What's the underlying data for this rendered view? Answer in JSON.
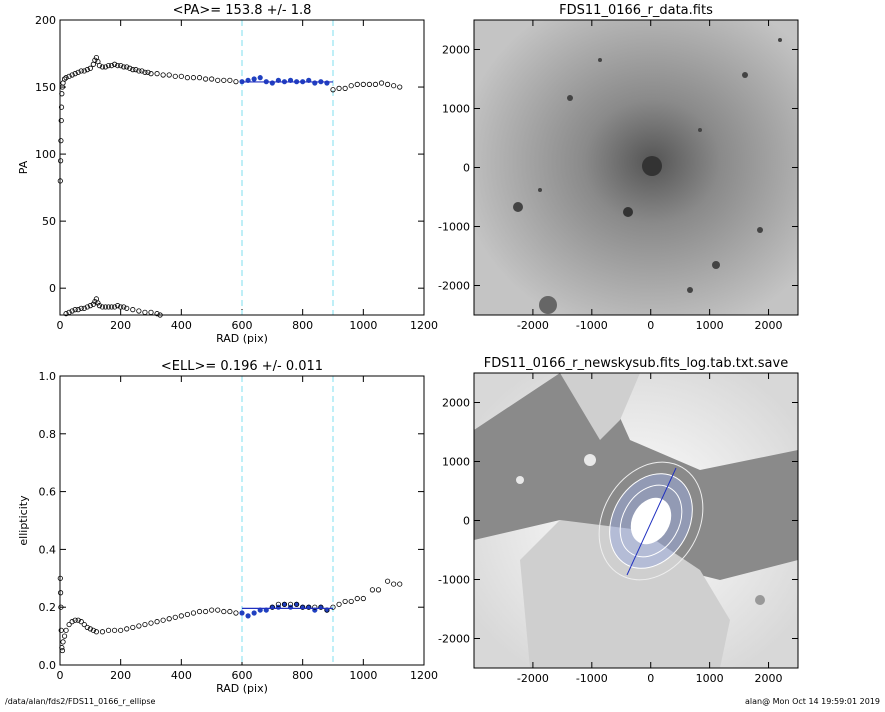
{
  "chart_data": [
    {
      "type": "scatter",
      "title": "<PA>= 153.8 +/-   1.8",
      "x_label": "RAD (pix)",
      "y_label": "PA",
      "xlim": [
        0,
        1200
      ],
      "ylim": [
        -20,
        200
      ],
      "xticks": [
        0,
        200,
        400,
        600,
        800,
        1000,
        1200
      ],
      "yticks": [
        0,
        50,
        100,
        150,
        200
      ],
      "vlines": [
        600,
        900
      ],
      "vline_color": "#7fdfef",
      "series": [
        {
          "color": "#000000",
          "x": [
            1,
            2,
            3,
            4,
            5,
            6,
            8,
            10,
            15,
            20,
            30,
            40,
            50,
            60,
            70,
            80,
            90,
            100,
            110,
            115,
            120,
            125,
            130,
            140,
            150,
            160,
            170,
            180,
            190,
            200,
            210,
            220,
            230,
            240,
            250,
            260,
            270,
            280,
            290,
            300,
            320,
            340,
            360,
            380,
            400,
            420,
            440,
            460,
            480,
            500,
            520,
            540,
            560,
            580
          ],
          "values": [
            80,
            95,
            110,
            125,
            135,
            145,
            150,
            153,
            156,
            157,
            158,
            159,
            160,
            161,
            162,
            162,
            163,
            164,
            167,
            170,
            172,
            169,
            166,
            165,
            165,
            166,
            166,
            167,
            166,
            166,
            165,
            165,
            164,
            163,
            163,
            162,
            162,
            161,
            161,
            160,
            160,
            159,
            159,
            158,
            158,
            157,
            157,
            157,
            156,
            156,
            155,
            155,
            155,
            154
          ]
        },
        {
          "color": "#2040c0",
          "x": [
            600,
            620,
            640,
            660,
            680,
            700,
            720,
            740,
            760,
            780,
            800,
            820,
            840,
            860,
            880
          ],
          "values": [
            154,
            155,
            156,
            157,
            154,
            153,
            155,
            154,
            155,
            154,
            154,
            155,
            153,
            154,
            153
          ]
        },
        {
          "color": "#000000",
          "x": [
            900,
            920,
            940,
            960,
            980,
            1000,
            1020,
            1040,
            1060,
            1080,
            1100,
            1120
          ],
          "values": [
            148,
            149,
            149,
            151,
            152,
            152,
            152,
            152,
            153,
            152,
            151,
            150
          ]
        },
        {
          "color": "#000000",
          "x": [
            20,
            30,
            40,
            50,
            60,
            70,
            80,
            90,
            100,
            110,
            115,
            120,
            125,
            130,
            140,
            150,
            160,
            170,
            180,
            190,
            200,
            210,
            220,
            240,
            260,
            280,
            300,
            320,
            330
          ],
          "values": [
            -19,
            -18,
            -17,
            -16,
            -16,
            -15,
            -15,
            -14,
            -13,
            -12,
            -10,
            -8,
            -11,
            -13,
            -14,
            -14,
            -14,
            -14,
            -14,
            -13,
            -14,
            -14,
            -15,
            -16,
            -17,
            -18,
            -18,
            -19,
            -20
          ]
        }
      ],
      "fit": {
        "color": "#2030c0",
        "x": [
          600,
          900
        ],
        "values": [
          153.8,
          153.8
        ]
      }
    },
    {
      "type": "image",
      "title": "FDS11_0166_r_data.fits",
      "xlim": [
        -3000,
        2500
      ],
      "ylim": [
        -2500,
        2500
      ],
      "xticks": [
        -2000,
        -1000,
        0,
        1000,
        2000
      ],
      "yticks": [
        -2000,
        -1000,
        0,
        1000,
        2000
      ]
    },
    {
      "type": "scatter",
      "title": "<ELL>= 0.196 +/-  0.011",
      "x_label": "RAD (pix)",
      "y_label": "ellipticity",
      "xlim": [
        0,
        1200
      ],
      "ylim": [
        0,
        1
      ],
      "xticks": [
        0,
        200,
        400,
        600,
        800,
        1000,
        1200
      ],
      "yticks": [
        {
          "value": 0,
          "label": "0.0"
        },
        0.2,
        0.4,
        0.6,
        0.8,
        {
          "value": 1,
          "label": "1.0"
        }
      ],
      "vlines": [
        600,
        900
      ],
      "vline_color": "#7fdfef",
      "series": [
        {
          "color": "#000000",
          "x": [
            1,
            2,
            3,
            4,
            6,
            8,
            10,
            15,
            20,
            30,
            40,
            50,
            60,
            70,
            80,
            90,
            100,
            110,
            120,
            140,
            160,
            180,
            200,
            220,
            240,
            260,
            280,
            300,
            320,
            340,
            360,
            380,
            400,
            420,
            440,
            460,
            480,
            500,
            520,
            540,
            560,
            580
          ],
          "values": [
            0.3,
            0.25,
            0.2,
            0.12,
            0.06,
            0.05,
            0.08,
            0.1,
            0.12,
            0.14,
            0.15,
            0.155,
            0.155,
            0.15,
            0.14,
            0.13,
            0.125,
            0.12,
            0.115,
            0.115,
            0.12,
            0.12,
            0.12,
            0.125,
            0.13,
            0.135,
            0.14,
            0.145,
            0.15,
            0.155,
            0.16,
            0.165,
            0.17,
            0.175,
            0.18,
            0.185,
            0.185,
            0.19,
            0.19,
            0.185,
            0.185,
            0.18
          ]
        },
        {
          "color": "#2040c0",
          "x": [
            600,
            620,
            640,
            660,
            680,
            700,
            720,
            740,
            760,
            780,
            800,
            820,
            840,
            860,
            880
          ],
          "values": [
            0.18,
            0.17,
            0.18,
            0.19,
            0.19,
            0.2,
            0.2,
            0.21,
            0.2,
            0.21,
            0.2,
            0.2,
            0.19,
            0.2,
            0.19
          ]
        },
        {
          "color": "#000000",
          "x": [
            700,
            720,
            740,
            760,
            780,
            800,
            820,
            840,
            860,
            880,
            900,
            920,
            940,
            960,
            980,
            1000,
            1030,
            1050,
            1080,
            1100,
            1120
          ],
          "values": [
            0.2,
            0.21,
            0.21,
            0.21,
            0.21,
            0.2,
            0.2,
            0.2,
            0.2,
            0.19,
            0.2,
            0.21,
            0.22,
            0.22,
            0.23,
            0.23,
            0.26,
            0.26,
            0.29,
            0.28,
            0.28
          ]
        }
      ],
      "fit": {
        "color": "#2030c0",
        "x": [
          600,
          900
        ],
        "values": [
          0.196,
          0.196
        ]
      }
    },
    {
      "type": "image",
      "title": "FDS11_0166_r_newskysub.fits_log.tab.txt.save",
      "xlim": [
        -3000,
        2500
      ],
      "ylim": [
        -2500,
        2500
      ],
      "xticks": [
        -2000,
        -1000,
        0,
        1000,
        2000
      ],
      "yticks": [
        -2000,
        -1000,
        0,
        1000,
        2000
      ]
    }
  ],
  "footer": {
    "left": "/data/alan/fds2/FDS11_0166_r_ellipse",
    "right": "alan@  Mon Oct 14 19:59:01 2019"
  }
}
